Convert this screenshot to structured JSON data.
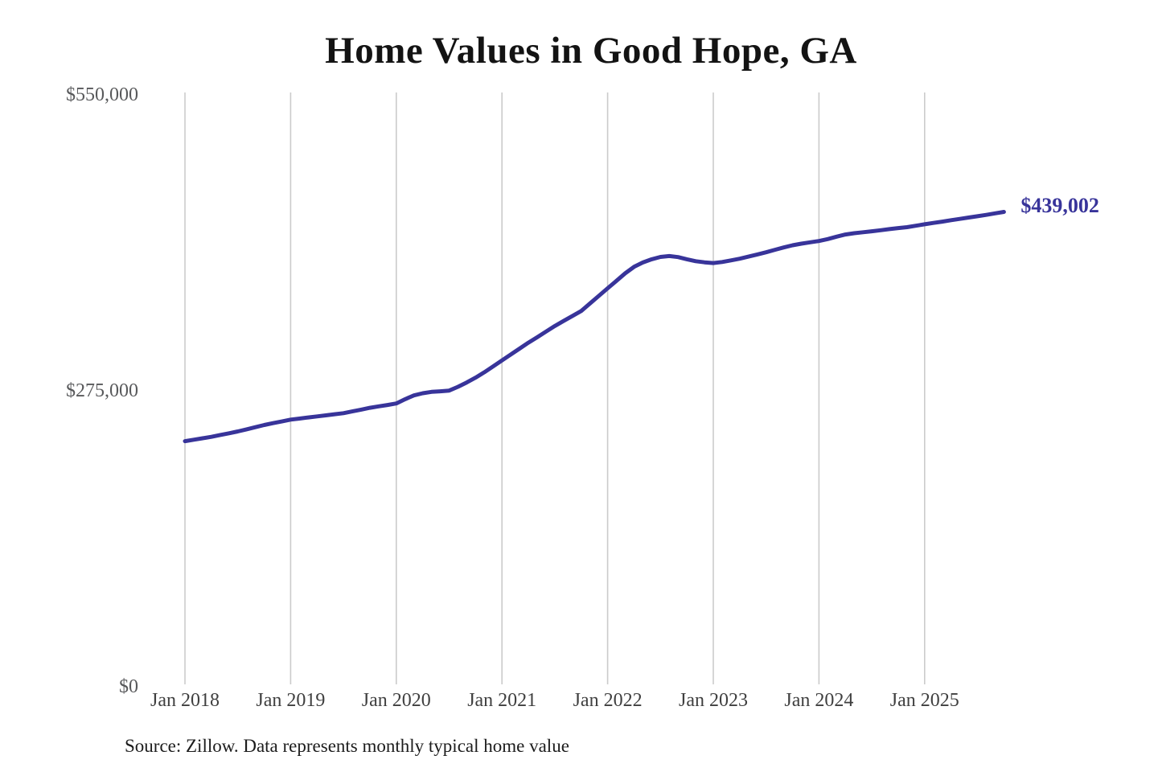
{
  "title": "Home Values in Good Hope, GA",
  "end_label": "$439,002",
  "source_note": "Source: Zillow. Data represents monthly typical home value",
  "colors": {
    "line": "#38349a",
    "end_label": "#38349a",
    "gridline": "#cbcbcb",
    "title": "#131313",
    "y_axis_text": "#58595b",
    "x_axis_text": "#3f3f3f",
    "background": "#ffffff"
  },
  "chart_data": {
    "type": "line",
    "title": "Home Values in Good Hope, GA",
    "xlabel": "",
    "ylabel": "",
    "ylim": [
      0,
      550000
    ],
    "grid": "vertical-only",
    "legend": "none",
    "frequency": "monthly",
    "first_month": "Jan 2018",
    "last_month": "Oct 2025",
    "x_tick_labels": [
      "Jan 2018",
      "Jan 2019",
      "Jan 2020",
      "Jan 2021",
      "Jan 2022",
      "Jan 2023",
      "Jan 2024",
      "Jan 2025"
    ],
    "y_ticks": [
      {
        "label": "$550,000",
        "value": 550000
      },
      {
        "label": "$275,000",
        "value": 275000
      },
      {
        "label": "$0",
        "value": 0
      }
    ],
    "annotation": {
      "text": "$439,002",
      "value": 439002,
      "position": "line-end"
    },
    "series": [
      {
        "name": "Monthly typical home value",
        "values": [
          226000,
          227300,
          228700,
          230000,
          231700,
          233300,
          235000,
          237000,
          239000,
          241000,
          242700,
          244300,
          246000,
          247000,
          248000,
          249000,
          250000,
          251000,
          252000,
          253600,
          255300,
          257000,
          258300,
          259600,
          261000,
          265000,
          268500,
          270500,
          271800,
          272300,
          273000,
          276500,
          280500,
          285000,
          290000,
          295500,
          301000,
          306500,
          312000,
          317500,
          322500,
          327800,
          333000,
          337700,
          342300,
          347000,
          354000,
          361000,
          368000,
          375000,
          382000,
          388000,
          392000,
          395000,
          397200,
          398000,
          397000,
          395000,
          393200,
          392200,
          391500,
          392500,
          394000,
          395500,
          397500,
          399500,
          401500,
          403800,
          406000,
          408000,
          409500,
          410800,
          412000,
          413800,
          416000,
          418000,
          419200,
          420100,
          421000,
          422000,
          423000,
          424000,
          424800,
          426200,
          427500,
          428800,
          430000,
          431300,
          432500,
          433800,
          435000,
          436300,
          437700,
          439002
        ]
      }
    ]
  }
}
